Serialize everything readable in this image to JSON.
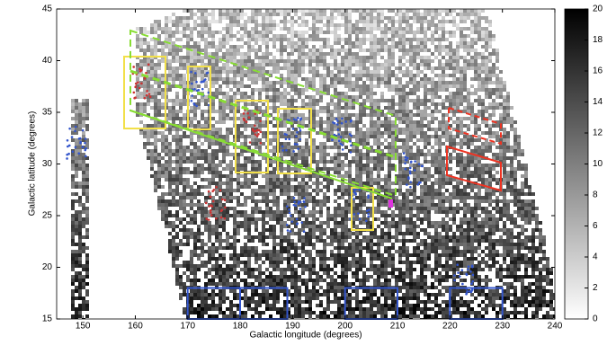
{
  "chart_data": {
    "type": "heatmap",
    "x_label": "Galactic longitude (degrees)",
    "y_label": "Galactic latitude (degrees)",
    "xlim": [
      145,
      240
    ],
    "xticks": [
      150,
      160,
      170,
      180,
      190,
      200,
      210,
      220,
      230,
      240
    ],
    "ylim": [
      15,
      45
    ],
    "yticks": [
      15,
      20,
      25,
      30,
      35,
      40,
      45
    ],
    "colorbar": {
      "range": [
        0,
        20
      ],
      "ticks": [
        0,
        2,
        4,
        6,
        8,
        10,
        12,
        14,
        16,
        18,
        20
      ],
      "colors": [
        "#ffffff",
        "#000000"
      ]
    }
  }
}
